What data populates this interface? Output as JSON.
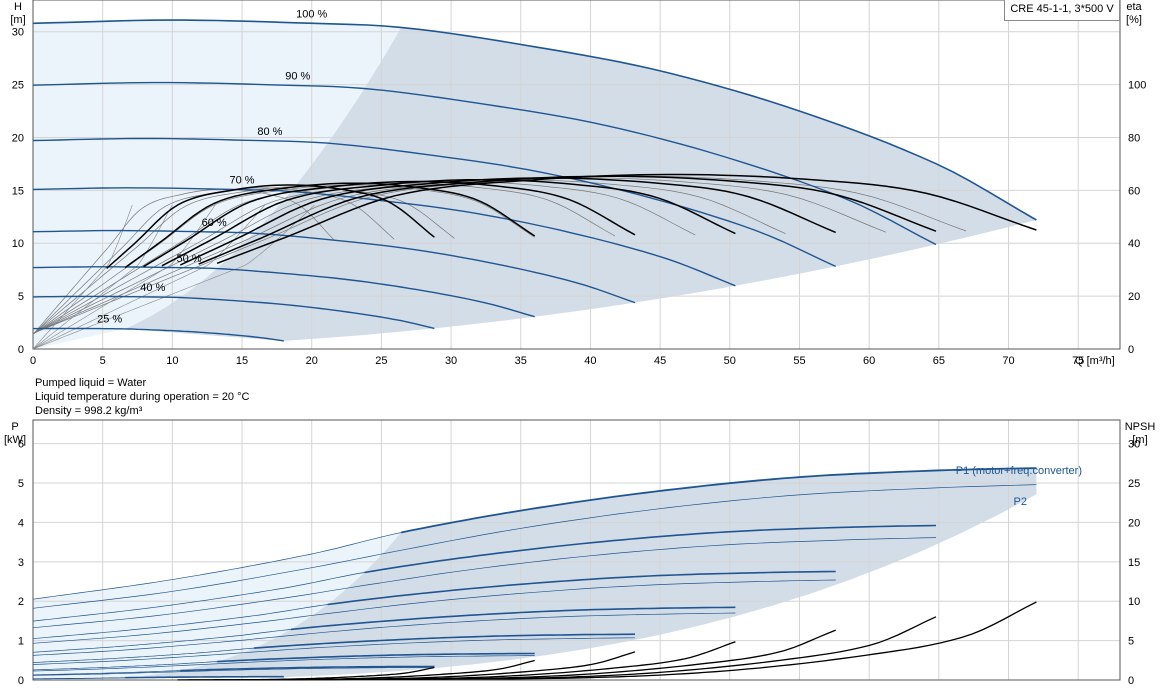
{
  "legend_label": "CRE 45-1-1, 3*500 V",
  "info_lines": [
    "Pumped liquid = Water",
    "Liquid temperature during operation = 20 °C",
    "Density = 998.2 kg/m³"
  ],
  "colors": {
    "grid": "#d4d4d4",
    "axis": "#555555",
    "curve_blue": "#1f5591",
    "curve_black": "#000000",
    "area_dark": "#d3dde8",
    "area_light": "#ebf3fb"
  },
  "chart_data": [
    {
      "type": "line",
      "name": "performance",
      "x_axis": {
        "label": "Q [m³/h]",
        "range": [
          0,
          78
        ],
        "ticks": [
          0,
          5,
          10,
          15,
          20,
          25,
          30,
          35,
          40,
          45,
          50,
          55,
          60,
          65,
          70,
          75
        ]
      },
      "y_axis_left": {
        "label_line1": "H",
        "label_line2": "[m]",
        "range": [
          0,
          33
        ],
        "ticks": [
          0,
          5,
          10,
          15,
          20,
          25,
          30
        ]
      },
      "y_axis_right": {
        "label_line1": "eta",
        "label_line2": "[%]",
        "range": [
          0,
          132
        ],
        "ticks": [
          0,
          20,
          40,
          60,
          80,
          100
        ]
      },
      "grid": true,
      "head_curves": [
        {
          "speed_label": "100 %",
          "pct": 100,
          "qmax": 72
        },
        {
          "speed_label": "90 %",
          "pct": 90,
          "qmax": 64.8
        },
        {
          "speed_label": "80 %",
          "pct": 80,
          "qmax": 57.6
        },
        {
          "speed_label": "70 %",
          "pct": 70,
          "qmax": 50.4
        },
        {
          "speed_label": "60 %",
          "pct": 60,
          "qmax": 43.2
        },
        {
          "speed_label": "50 %",
          "pct": 50,
          "qmax": 36
        },
        {
          "speed_label": "40 %",
          "pct": 40,
          "qmax": 28.8
        },
        {
          "speed_label": "25 %",
          "pct": 25,
          "qmax": 18
        }
      ],
      "head_100_points": [
        [
          0,
          30.8
        ],
        [
          10,
          31.1
        ],
        [
          20,
          30.8
        ],
        [
          26.5,
          30.4
        ],
        [
          35,
          28.8
        ],
        [
          45,
          26.3
        ],
        [
          55,
          22.5
        ],
        [
          65,
          17.4
        ],
        [
          72,
          12.2
        ]
      ],
      "efficiency_100_points": [
        [
          18,
          42
        ],
        [
          26,
          58
        ],
        [
          36,
          64
        ],
        [
          46,
          66
        ],
        [
          56,
          64
        ],
        [
          64,
          59
        ],
        [
          72,
          45
        ]
      ],
      "operating_area_min_q_fraction": 0.367
    },
    {
      "type": "line",
      "name": "power",
      "x_axis": {
        "label": "Q [m³/h]",
        "range": [
          0,
          78
        ]
      },
      "y_axis_left": {
        "label_line1": "P",
        "label_line2": "[kW]",
        "range": [
          0,
          6.6
        ],
        "ticks": [
          0,
          1,
          2,
          3,
          4,
          5,
          6
        ]
      },
      "y_axis_right": {
        "label_line1": "NPSH",
        "label_line2": "[m]",
        "range": [
          0,
          33
        ],
        "ticks": [
          0,
          5,
          10,
          15,
          20,
          25,
          30
        ]
      },
      "grid": true,
      "series_labels": {
        "p1": "P1 (motor+freq.converter)",
        "p2": "P2"
      },
      "p1_100_points": [
        [
          0,
          2.05
        ],
        [
          10,
          2.55
        ],
        [
          20,
          3.2
        ],
        [
          26.5,
          3.75
        ],
        [
          35,
          4.3
        ],
        [
          45,
          4.8
        ],
        [
          55,
          5.15
        ],
        [
          65,
          5.32
        ],
        [
          72,
          5.38
        ]
      ],
      "p2_100_points": [
        [
          0,
          1.82
        ],
        [
          10,
          2.25
        ],
        [
          20,
          2.85
        ],
        [
          26.5,
          3.3
        ],
        [
          35,
          3.85
        ],
        [
          45,
          4.35
        ],
        [
          55,
          4.7
        ],
        [
          65,
          4.88
        ],
        [
          72,
          4.96
        ]
      ],
      "npsh_100_points": [
        [
          26,
          0.1
        ],
        [
          40,
          0.3
        ],
        [
          50,
          1.2
        ],
        [
          60,
          3.2
        ],
        [
          67,
          5.6
        ],
        [
          72,
          9.9
        ]
      ]
    }
  ]
}
